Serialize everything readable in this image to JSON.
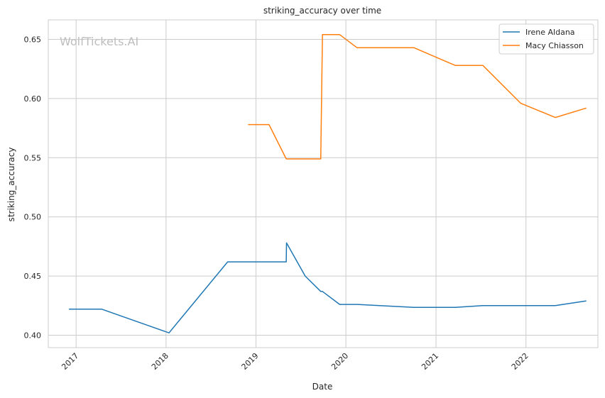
{
  "chart_data": {
    "type": "line",
    "title": "striking_accuracy over time",
    "xlabel": "Date",
    "ylabel": "striking_accuracy",
    "watermark": "WolfTickets.AI",
    "x_tick_labels": [
      "2017",
      "2018",
      "2019",
      "2020",
      "2021",
      "2022"
    ],
    "y_tick_labels": [
      "0.40",
      "0.45",
      "0.50",
      "0.55",
      "0.60",
      "0.65"
    ],
    "y_ticks": [
      0.4,
      0.45,
      0.5,
      0.55,
      0.6,
      0.65
    ],
    "xlim": [
      "2016-09-10",
      "2022-10-20"
    ],
    "ylim": [
      0.3895,
      0.6665
    ],
    "grid": true,
    "legend_position": "top-right",
    "series": [
      {
        "name": "Irene Aldana",
        "color": "#1f77b4",
        "points": [
          [
            "2016-12-03",
            0.422
          ],
          [
            "2017-04-15",
            0.422
          ],
          [
            "2018-01-13",
            0.402
          ],
          [
            "2018-09-08",
            0.462
          ],
          [
            "2019-05-04",
            0.462
          ],
          [
            "2019-05-05",
            0.478
          ],
          [
            "2019-07-20",
            0.45
          ],
          [
            "2019-09-21",
            0.437
          ],
          [
            "2019-09-28",
            0.437
          ],
          [
            "2019-12-07",
            0.426
          ],
          [
            "2020-02-15",
            0.426
          ],
          [
            "2020-10-03",
            0.4235
          ],
          [
            "2021-03-20",
            0.4235
          ],
          [
            "2021-07-10",
            0.425
          ],
          [
            "2021-12-11",
            0.425
          ],
          [
            "2022-04-30",
            0.425
          ],
          [
            "2022-09-03",
            0.429
          ]
        ]
      },
      {
        "name": "Macy Chiasson",
        "color": "#ff7f0e",
        "points": [
          [
            "2018-11-30",
            0.578
          ],
          [
            "2019-02-23",
            0.578
          ],
          [
            "2019-05-04",
            0.549
          ],
          [
            "2019-09-21",
            0.549
          ],
          [
            "2019-09-28",
            0.654
          ],
          [
            "2019-12-07",
            0.654
          ],
          [
            "2020-02-15",
            0.643
          ],
          [
            "2020-10-03",
            0.643
          ],
          [
            "2021-03-20",
            0.628
          ],
          [
            "2021-07-10",
            0.628
          ],
          [
            "2021-12-11",
            0.596
          ],
          [
            "2022-04-30",
            0.584
          ],
          [
            "2022-09-03",
            0.592
          ]
        ]
      }
    ]
  }
}
